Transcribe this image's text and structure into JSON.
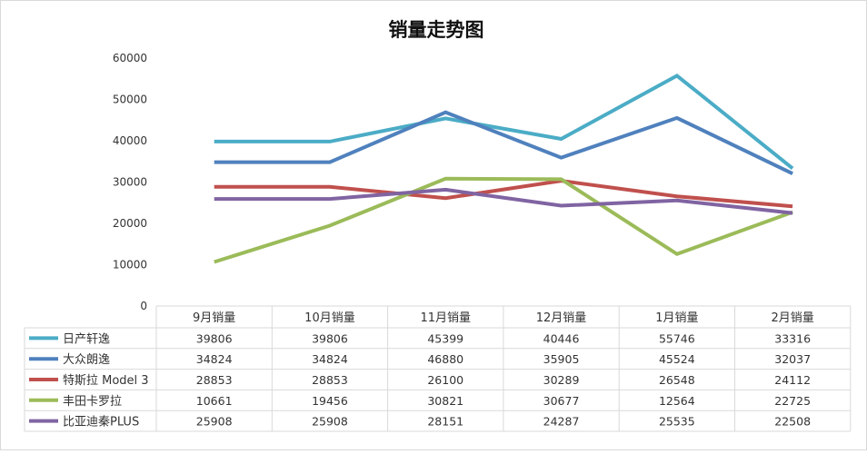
{
  "chart_data": {
    "type": "line",
    "title": "销量走势图",
    "categories": [
      "9月销量",
      "10月销量",
      "11月销量",
      "12月销量",
      "1月销量",
      "2月销量"
    ],
    "ylim": [
      0,
      60000
    ],
    "yticks": [
      0,
      10000,
      20000,
      30000,
      40000,
      50000,
      60000
    ],
    "grid": false,
    "legend": "data-table",
    "series": [
      {
        "name": "日产轩逸",
        "color": "#4BACC6",
        "values": [
          39806,
          39806,
          45399,
          40446,
          55746,
          33316
        ]
      },
      {
        "name": "大众朗逸",
        "color": "#4F81BD",
        "values": [
          34824,
          34824,
          46880,
          35905,
          45524,
          32037
        ]
      },
      {
        "name": "特斯拉 Model 3",
        "color": "#C0504D",
        "values": [
          28853,
          28853,
          26100,
          30289,
          26548,
          24112
        ]
      },
      {
        "name": "丰田卡罗拉",
        "color": "#9BBB59",
        "values": [
          10661,
          19456,
          30821,
          30677,
          12564,
          22725
        ]
      },
      {
        "name": "比亚迪秦PLUS",
        "color": "#8064A2",
        "values": [
          25908,
          25908,
          28151,
          24287,
          25535,
          22508
        ]
      }
    ]
  }
}
